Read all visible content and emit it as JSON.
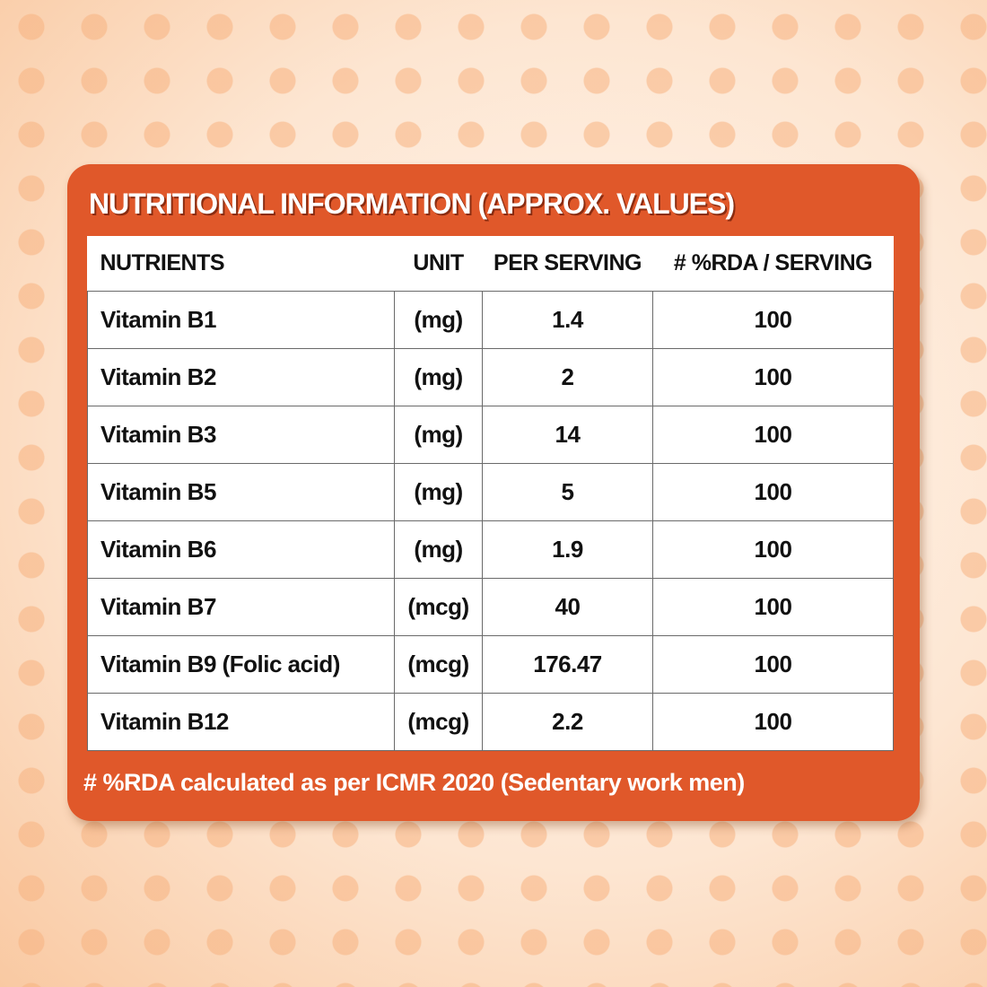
{
  "title": "NUTRITIONAL INFORMATION (APPROX. VALUES)",
  "colors": {
    "panel": "#e0582a",
    "table_bg": "#ffffff",
    "text": "#111111"
  },
  "headers": [
    "NUTRIENTS",
    "UNIT",
    "PER SERVING",
    "# %RDA / SERVING"
  ],
  "rows": [
    [
      "Vitamin B1",
      "(mg)",
      "1.4",
      "100"
    ],
    [
      "Vitamin B2",
      "(mg)",
      "2",
      "100"
    ],
    [
      "Vitamin B3",
      "(mg)",
      "14",
      "100"
    ],
    [
      "Vitamin B5",
      "(mg)",
      "5",
      "100"
    ],
    [
      "Vitamin B6",
      "(mg)",
      "1.9",
      "100"
    ],
    [
      "Vitamin B7",
      "(mcg)",
      "40",
      "100"
    ],
    [
      "Vitamin B9 (Folic acid)",
      "(mcg)",
      "176.47",
      "100"
    ],
    [
      "Vitamin B12",
      "(mcg)",
      "2.2",
      "100"
    ]
  ],
  "footnote": "# %RDA calculated as per ICMR 2020 (Sedentary work men)"
}
